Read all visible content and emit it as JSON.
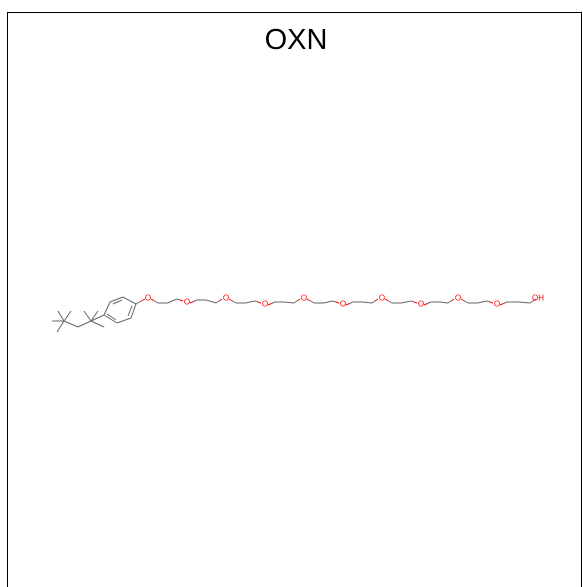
{
  "title": "OXN",
  "colors": {
    "bond": "#666666",
    "oxygen": "#ff0000",
    "frame": "#000000"
  },
  "molecule": {
    "name_shown": "OXN",
    "ether_oxygen_label": "O",
    "terminal_label": "OH",
    "ether_oxygen_count": 10
  }
}
